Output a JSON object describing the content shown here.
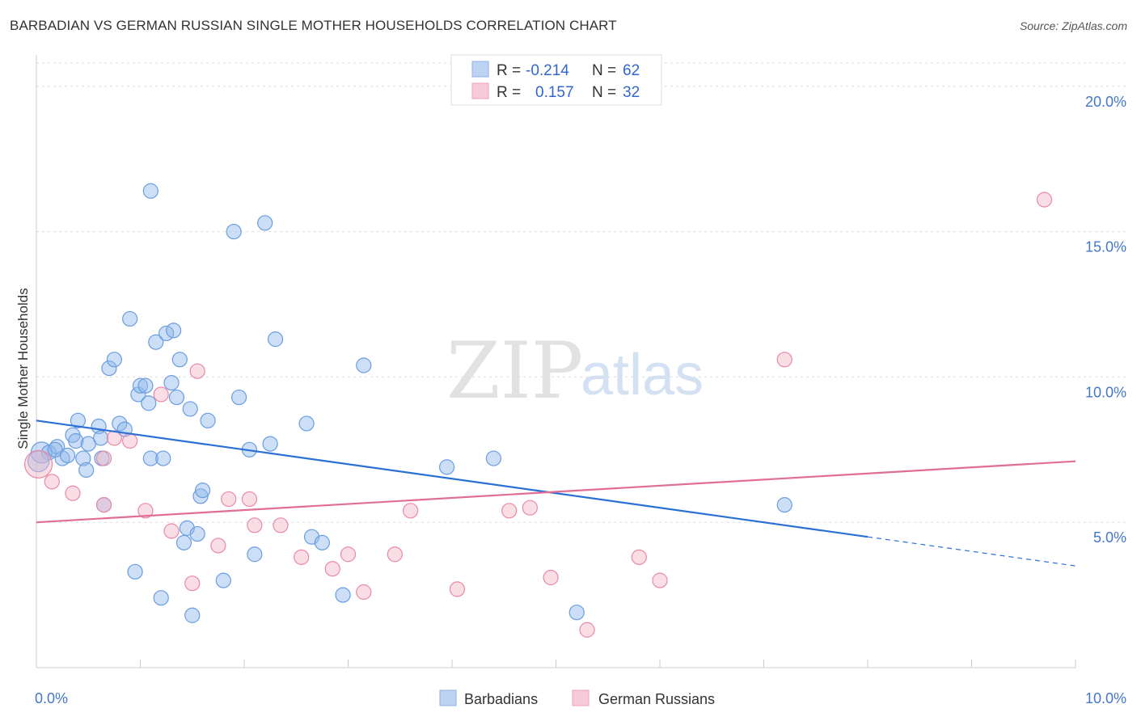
{
  "header": {
    "title": "BARBADIAN VS GERMAN RUSSIAN SINGLE MOTHER HOUSEHOLDS CORRELATION CHART",
    "source": "Source: ZipAtlas.com"
  },
  "watermark": {
    "zip": "ZIP",
    "atlas": "atlas"
  },
  "chart_data": {
    "type": "scatter",
    "ylabel": "Single Mother Households",
    "xlabel": "",
    "xlim": [
      0,
      10
    ],
    "ylim": [
      0,
      20.8
    ],
    "x_tick_labels": [
      {
        "value": 0,
        "label": "0.0%"
      },
      {
        "value": 10,
        "label": "10.0%"
      }
    ],
    "y_tick_labels": [
      {
        "value": 5,
        "label": "5.0%"
      },
      {
        "value": 10,
        "label": "10.0%"
      },
      {
        "value": 15,
        "label": "15.0%"
      },
      {
        "value": 20,
        "label": "20.0%"
      }
    ],
    "grid": "horizontal dashed",
    "legend": {
      "placement": "top-center",
      "entries": [
        {
          "r_label": "R =",
          "r_value": "-0.214",
          "n_label": "N =",
          "n_value": "62"
        },
        {
          "r_label": "R =",
          "r_value": "0.157",
          "n_label": "N =",
          "n_value": "32"
        }
      ]
    },
    "series": [
      {
        "name": "Barbadians",
        "color": "#8fb8ea",
        "stroke": "#6a9de0",
        "trend_color": "#2a6fd4",
        "trend": {
          "x0": 0,
          "y0": 8.5,
          "x1": 8.0,
          "y1": 4.5,
          "dash_to_x": 10,
          "dash_to_y": 3.5
        },
        "points": [
          [
            0.05,
            7.4
          ],
          [
            0.12,
            7.4
          ],
          [
            0.2,
            7.6
          ],
          [
            0.25,
            7.2
          ],
          [
            0.18,
            7.5
          ],
          [
            0.35,
            8.0
          ],
          [
            0.38,
            7.8
          ],
          [
            0.4,
            8.5
          ],
          [
            0.45,
            7.2
          ],
          [
            0.5,
            7.7
          ],
          [
            0.48,
            6.8
          ],
          [
            0.6,
            8.3
          ],
          [
            0.62,
            7.9
          ],
          [
            0.63,
            7.2
          ],
          [
            0.65,
            5.6
          ],
          [
            0.7,
            10.3
          ],
          [
            0.75,
            10.6
          ],
          [
            0.8,
            8.4
          ],
          [
            0.85,
            8.2
          ],
          [
            0.9,
            12.0
          ],
          [
            0.95,
            3.3
          ],
          [
            0.98,
            9.4
          ],
          [
            1.0,
            9.7
          ],
          [
            1.05,
            9.7
          ],
          [
            1.08,
            9.1
          ],
          [
            1.1,
            7.2
          ],
          [
            1.15,
            11.2
          ],
          [
            1.1,
            16.4
          ],
          [
            1.2,
            2.4
          ],
          [
            1.22,
            7.2
          ],
          [
            1.25,
            11.5
          ],
          [
            1.3,
            9.8
          ],
          [
            1.32,
            11.6
          ],
          [
            1.35,
            9.3
          ],
          [
            1.38,
            10.6
          ],
          [
            1.42,
            4.3
          ],
          [
            1.45,
            4.8
          ],
          [
            1.48,
            8.9
          ],
          [
            1.5,
            1.8
          ],
          [
            1.55,
            4.6
          ],
          [
            1.58,
            5.9
          ],
          [
            1.6,
            6.1
          ],
          [
            1.65,
            8.5
          ],
          [
            1.8,
            3.0
          ],
          [
            1.9,
            15.0
          ],
          [
            1.95,
            9.3
          ],
          [
            2.05,
            7.5
          ],
          [
            2.1,
            3.9
          ],
          [
            2.2,
            15.3
          ],
          [
            2.25,
            7.7
          ],
          [
            2.3,
            11.3
          ],
          [
            2.6,
            8.4
          ],
          [
            2.65,
            4.5
          ],
          [
            2.75,
            4.3
          ],
          [
            2.95,
            2.5
          ],
          [
            3.15,
            10.4
          ],
          [
            3.95,
            6.9
          ],
          [
            4.4,
            7.2
          ],
          [
            5.2,
            1.9
          ],
          [
            7.2,
            5.6
          ],
          [
            0.02,
            7.1
          ],
          [
            0.3,
            7.3
          ]
        ]
      },
      {
        "name": "German Russians",
        "color": "#f5b6c8",
        "stroke": "#e889a6",
        "trend_color": "#e06d95",
        "trend": {
          "x0": 0,
          "y0": 5.0,
          "x1": 10,
          "y1": 7.1
        },
        "points": [
          [
            0.02,
            7.0
          ],
          [
            0.15,
            6.4
          ],
          [
            0.35,
            6.0
          ],
          [
            0.65,
            7.2
          ],
          [
            0.65,
            5.6
          ],
          [
            0.75,
            7.9
          ],
          [
            0.9,
            7.8
          ],
          [
            1.05,
            5.4
          ],
          [
            1.2,
            9.4
          ],
          [
            1.3,
            4.7
          ],
          [
            1.5,
            2.9
          ],
          [
            1.55,
            10.2
          ],
          [
            1.75,
            4.2
          ],
          [
            1.85,
            5.8
          ],
          [
            2.05,
            5.8
          ],
          [
            2.1,
            4.9
          ],
          [
            2.35,
            4.9
          ],
          [
            2.55,
            3.8
          ],
          [
            2.85,
            3.4
          ],
          [
            3.0,
            3.9
          ],
          [
            3.15,
            2.6
          ],
          [
            3.45,
            3.9
          ],
          [
            3.6,
            5.4
          ],
          [
            4.05,
            2.7
          ],
          [
            4.55,
            5.4
          ],
          [
            4.75,
            5.5
          ],
          [
            4.95,
            3.1
          ],
          [
            5.3,
            1.3
          ],
          [
            5.8,
            3.8
          ],
          [
            6.0,
            3.0
          ],
          [
            7.2,
            10.6
          ],
          [
            9.7,
            16.1
          ]
        ]
      }
    ]
  }
}
